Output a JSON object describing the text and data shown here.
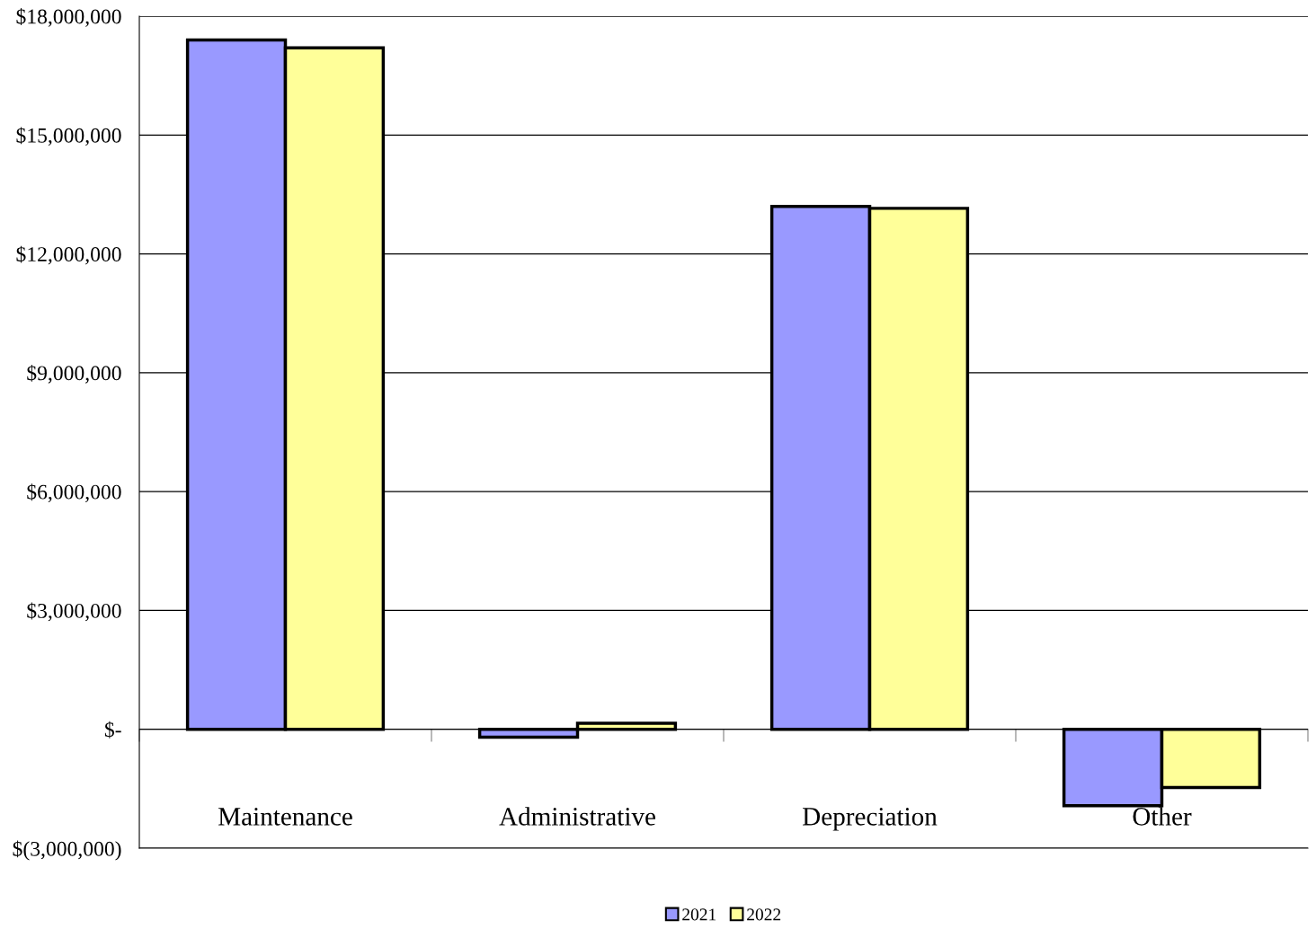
{
  "chart_data": {
    "type": "bar",
    "categories": [
      "Maintenance",
      "Administrative",
      "Depreciation",
      "Other"
    ],
    "series": [
      {
        "name": "2021",
        "color": "#9999ff",
        "values": [
          17400000,
          -200000,
          13200000,
          -1930000
        ]
      },
      {
        "name": "2022",
        "color": "#ffff99",
        "values": [
          17200000,
          150000,
          13150000,
          -1470000
        ]
      }
    ],
    "ylim": [
      -3000000,
      18000000
    ],
    "yticks": [
      {
        "value": -3000000,
        "label": "$(3,000,000)"
      },
      {
        "value": 0,
        "label": "$-"
      },
      {
        "value": 3000000,
        "label": "$3,000,000"
      },
      {
        "value": 6000000,
        "label": "$6,000,000"
      },
      {
        "value": 9000000,
        "label": "$9,000,000"
      },
      {
        "value": 12000000,
        "label": "$12,000,000"
      },
      {
        "value": 15000000,
        "label": "$15,000,000"
      },
      {
        "value": 18000000,
        "label": "$18,000,000"
      }
    ],
    "grid": "y",
    "legend": "bottom"
  }
}
